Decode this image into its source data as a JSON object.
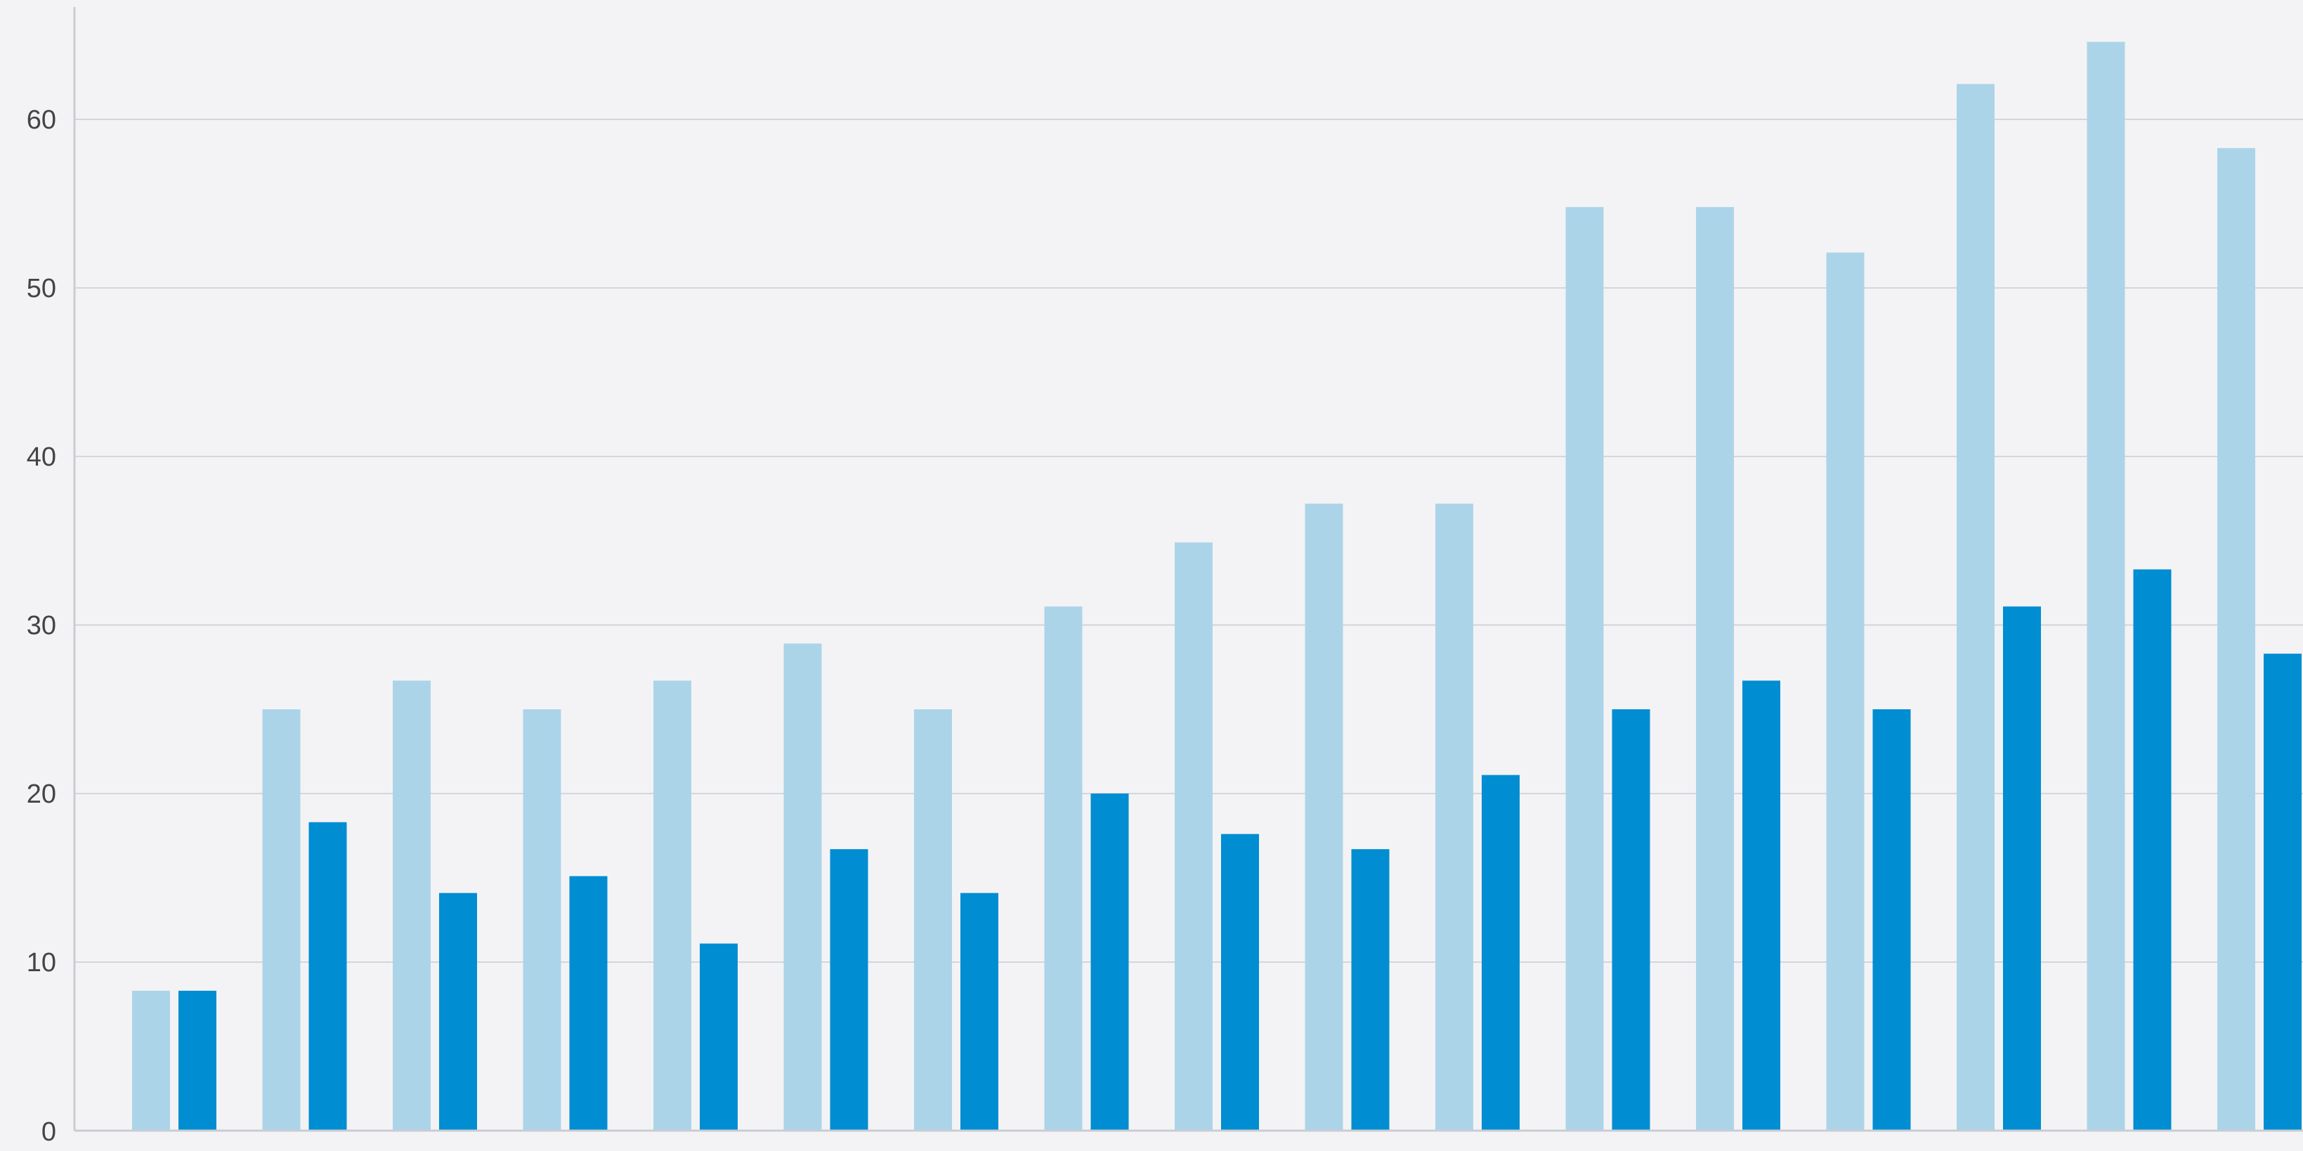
{
  "chart_data": {
    "type": "bar",
    "categories": [
      "",
      "",
      "",
      "",
      "",
      "",
      "",
      "",
      "",
      "",
      "",
      "",
      "",
      "",
      "",
      "",
      "",
      ""
    ],
    "series": [
      {
        "values": [
          8.3,
          25.0,
          26.7,
          25.0,
          26.7,
          28.9,
          25.0,
          31.1,
          34.9,
          37.2,
          37.2,
          54.8,
          54.8,
          52.1,
          62.1,
          64.6,
          58.3,
          0
        ],
        "color": "#acd4e9"
      },
      {
        "values": [
          8.3,
          18.3,
          14.1,
          15.1,
          11.1,
          16.7,
          14.1,
          20.0,
          17.6,
          16.7,
          21.1,
          25.0,
          26.7,
          25.0,
          31.1,
          33.3,
          28.3,
          0
        ],
        "color": "#008dd2"
      }
    ],
    "y_ticks": [
      "0",
      "10",
      "20",
      "30",
      "40",
      "50",
      "60"
    ],
    "ylim": [
      0,
      67
    ],
    "grid": true,
    "legend": "none",
    "xlabel": "",
    "ylabel": "",
    "title": ""
  },
  "colors": {
    "background": "#f3f3f5",
    "grid": "#d3d6dc",
    "axis": "#c9ccd2",
    "tick_text": "#444444"
  }
}
